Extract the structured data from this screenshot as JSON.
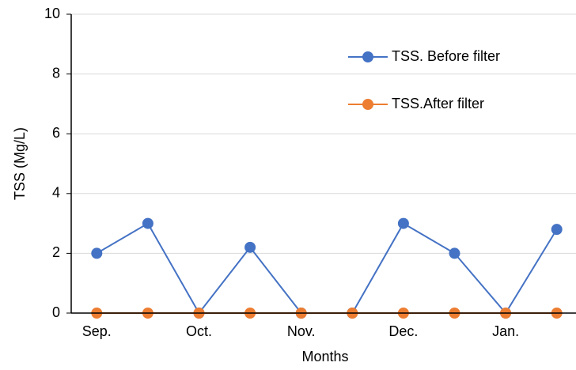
{
  "chart_data": {
    "type": "line",
    "x_label": "Months",
    "y_label": "TSS (Mg/L)",
    "categories": [
      "Sep.",
      null,
      "Oct.",
      null,
      "Nov.",
      null,
      "Dec.",
      null,
      "Jan.",
      null
    ],
    "series": [
      {
        "name": "TSS. Before filter",
        "color": "#4472c4",
        "values": [
          2,
          3,
          0,
          2.2,
          0,
          0,
          3,
          2,
          0,
          2.8
        ]
      },
      {
        "name": "TSS.After filter",
        "color": "#ed7d31",
        "values": [
          0,
          0,
          0,
          0,
          0,
          0,
          0,
          0,
          0,
          0
        ]
      }
    ],
    "ylim": [
      0,
      10
    ],
    "yticks": [
      0,
      2,
      4,
      6,
      8,
      10
    ],
    "grid": true,
    "legend": "upper right"
  }
}
